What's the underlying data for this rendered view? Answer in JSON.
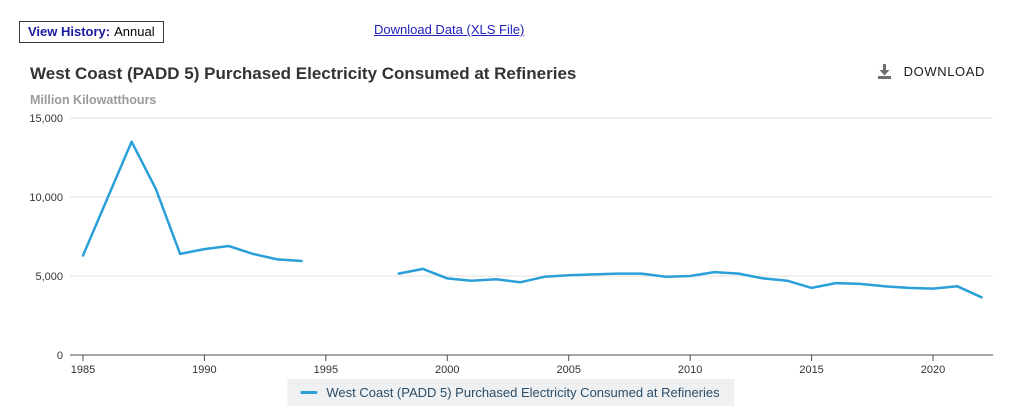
{
  "header": {
    "view_history_label": "View History:",
    "view_history_value": "Annual",
    "download_data_link": "Download Data (XLS File)",
    "title": "West Coast (PADD 5) Purchased Electricity Consumed at Refineries",
    "units": "Million Kilowatthours",
    "download_button_label": "DOWNLOAD"
  },
  "legend": {
    "label": "West Coast (PADD 5) Purchased Electricity Consumed at Refineries"
  },
  "colors": {
    "line": "#2a9fd8",
    "grid": "#e2e2e2",
    "axis_line": "#4d4d4d",
    "tick_text": "#333333",
    "legend_bg": "#eef0f2",
    "legend_text": "#2b4d68",
    "link_blue": "#2020bb",
    "view_history_blue": "#1a1aa0",
    "title_text": "#333333",
    "units_text": "#9a9a9a",
    "download_icon": "#6e6e6e"
  },
  "chart_data": {
    "type": "line",
    "title": "West Coast (PADD 5) Purchased Electricity Consumed at Refineries",
    "xlabel": "",
    "ylabel": "Million Kilowatthours",
    "xlim": [
      1985,
      2022.6
    ],
    "ylim": [
      0,
      15000
    ],
    "x_ticks": [
      1985,
      1990,
      1995,
      2000,
      2005,
      2010,
      2015,
      2020
    ],
    "y_ticks": [
      0,
      5000,
      10000,
      15000
    ],
    "y_tick_labels": [
      "0",
      "5,000",
      "10,000",
      "15,000"
    ],
    "grid": "horizontal",
    "legend_position": "bottom-center",
    "series": [
      {
        "name": "West Coast (PADD 5) Purchased Electricity Consumed at Refineries",
        "x": [
          1985,
          1986,
          1987,
          1988,
          1989,
          1990,
          1991,
          1992,
          1993,
          1994,
          1995,
          1996,
          1997,
          1998,
          1999,
          2000,
          2001,
          2002,
          2003,
          2004,
          2005,
          2006,
          2007,
          2008,
          2009,
          2010,
          2011,
          2012,
          2013,
          2014,
          2015,
          2016,
          2017,
          2018,
          2019,
          2020,
          2021,
          2022
        ],
        "values": [
          6300,
          9900,
          13500,
          10500,
          6400,
          6700,
          6900,
          6400,
          6050,
          5950,
          null,
          null,
          null,
          5150,
          5450,
          4850,
          4700,
          4800,
          4600,
          4950,
          5050,
          5100,
          5150,
          5150,
          4950,
          5000,
          5250,
          5150,
          4850,
          4700,
          4250,
          4550,
          4500,
          4350,
          4250,
          4200,
          4350,
          3650
        ]
      }
    ]
  }
}
